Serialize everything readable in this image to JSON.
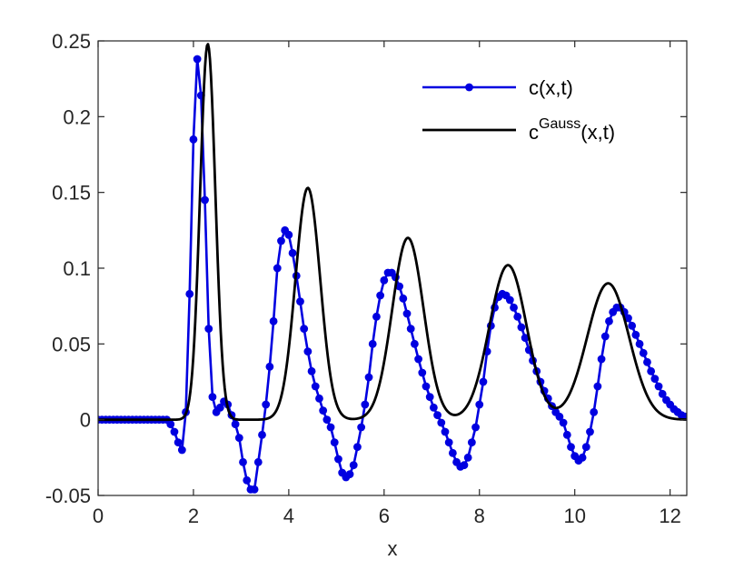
{
  "chart_data": {
    "type": "line",
    "title": "",
    "xlabel": "x",
    "ylabel": "",
    "xlim": [
      0,
      12.35
    ],
    "ylim": [
      -0.05,
      0.25
    ],
    "xticks": [
      0,
      2,
      4,
      6,
      8,
      10,
      12
    ],
    "xtick_labels": [
      "0",
      "2",
      "4",
      "6",
      "8",
      "10",
      "12"
    ],
    "yticks": [
      -0.05,
      0,
      0.05,
      0.1,
      0.15,
      0.2,
      0.25
    ],
    "ytick_labels": [
      "-0.05",
      "0",
      "0.05",
      "0.1",
      "0.15",
      "0.2",
      "0.25"
    ],
    "grid": false,
    "legend_position": "top-right",
    "legend": [
      {
        "base": "c(x,t)",
        "sup": "",
        "tail": ""
      },
      {
        "base": "c",
        "sup": "Gauss",
        "tail": "(x,t)"
      }
    ],
    "series": [
      {
        "name": "c(x,t)",
        "color": "#0000e0",
        "marker": "circle",
        "x": [
          0,
          0.08,
          0.16,
          0.24,
          0.32,
          0.4,
          0.48,
          0.56,
          0.64,
          0.72,
          0.8,
          0.88,
          0.96,
          1.04,
          1.12,
          1.2,
          1.28,
          1.36,
          1.44,
          1.52,
          1.6,
          1.68,
          1.76,
          1.84,
          1.92,
          2.0,
          2.08,
          2.16,
          2.24,
          2.32,
          2.4,
          2.48,
          2.56,
          2.64,
          2.72,
          2.8,
          2.88,
          2.96,
          3.04,
          3.12,
          3.2,
          3.28,
          3.36,
          3.44,
          3.52,
          3.6,
          3.68,
          3.76,
          3.84,
          3.92,
          4.0,
          4.08,
          4.16,
          4.24,
          4.32,
          4.4,
          4.48,
          4.56,
          4.64,
          4.72,
          4.8,
          4.88,
          4.96,
          5.04,
          5.12,
          5.2,
          5.28,
          5.36,
          5.44,
          5.52,
          5.6,
          5.68,
          5.76,
          5.84,
          5.92,
          6.0,
          6.08,
          6.16,
          6.24,
          6.32,
          6.4,
          6.48,
          6.56,
          6.64,
          6.72,
          6.8,
          6.88,
          6.96,
          7.04,
          7.12,
          7.2,
          7.28,
          7.36,
          7.44,
          7.52,
          7.6,
          7.68,
          7.76,
          7.84,
          7.92,
          8.0,
          8.08,
          8.16,
          8.24,
          8.32,
          8.4,
          8.48,
          8.56,
          8.64,
          8.72,
          8.8,
          8.88,
          8.96,
          9.04,
          9.12,
          9.2,
          9.28,
          9.36,
          9.44,
          9.52,
          9.6,
          9.68,
          9.76,
          9.84,
          9.92,
          10.0,
          10.08,
          10.16,
          10.24,
          10.32,
          10.4,
          10.48,
          10.56,
          10.64,
          10.72,
          10.8,
          10.88,
          10.96,
          11.04,
          11.12,
          11.2,
          11.28,
          11.36,
          11.44,
          11.52,
          11.6,
          11.68,
          11.76,
          11.84,
          11.92,
          12.0,
          12.08,
          12.16,
          12.24,
          12.32
        ],
        "y": [
          0,
          0,
          0,
          0,
          0,
          0,
          0,
          0,
          0,
          0,
          0,
          0,
          0,
          0,
          0,
          0,
          0,
          0,
          0,
          -0.003,
          -0.008,
          -0.015,
          -0.02,
          0.005,
          0.083,
          0.185,
          0.238,
          0.214,
          0.145,
          0.06,
          0.015,
          0.005,
          0.008,
          0.012,
          0.01,
          0.003,
          -0.003,
          -0.012,
          -0.028,
          -0.04,
          -0.046,
          -0.046,
          -0.028,
          -0.01,
          0.01,
          0.035,
          0.065,
          0.1,
          0.118,
          0.125,
          0.122,
          0.11,
          0.095,
          0.078,
          0.06,
          0.045,
          0.032,
          0.022,
          0.014,
          0.006,
          0.0,
          -0.005,
          -0.015,
          -0.026,
          -0.035,
          -0.038,
          -0.036,
          -0.03,
          -0.018,
          -0.005,
          0.01,
          0.028,
          0.05,
          0.068,
          0.082,
          0.092,
          0.097,
          0.097,
          0.094,
          0.088,
          0.08,
          0.07,
          0.06,
          0.05,
          0.04,
          0.031,
          0.022,
          0.015,
          0.008,
          0.003,
          -0.002,
          -0.008,
          -0.015,
          -0.022,
          -0.028,
          -0.031,
          -0.03,
          -0.025,
          -0.015,
          -0.005,
          0.01,
          0.025,
          0.045,
          0.062,
          0.074,
          0.081,
          0.083,
          0.082,
          0.079,
          0.074,
          0.068,
          0.061,
          0.054,
          0.046,
          0.039,
          0.032,
          0.025,
          0.019,
          0.014,
          0.009,
          0.005,
          0.002,
          -0.002,
          -0.01,
          -0.018,
          -0.024,
          -0.027,
          -0.025,
          -0.018,
          -0.008,
          0.005,
          0.022,
          0.04,
          0.055,
          0.065,
          0.071,
          0.074,
          0.074,
          0.071,
          0.067,
          0.062,
          0.056,
          0.05,
          0.044,
          0.038,
          0.032,
          0.027,
          0.022,
          0.017,
          0.013,
          0.01,
          0.007,
          0.005,
          0.003,
          0.002
        ]
      },
      {
        "name": "c^Gauss(x,t)",
        "color": "#000000",
        "marker": "none",
        "peaks": [
          {
            "center": 2.3,
            "amplitude": 0.248,
            "sigma": 0.16
          },
          {
            "center": 4.4,
            "amplitude": 0.153,
            "sigma": 0.26
          },
          {
            "center": 6.5,
            "amplitude": 0.12,
            "sigma": 0.33
          },
          {
            "center": 8.6,
            "amplitude": 0.102,
            "sigma": 0.39
          },
          {
            "center": 10.7,
            "amplitude": 0.09,
            "sigma": 0.44
          }
        ]
      }
    ]
  }
}
